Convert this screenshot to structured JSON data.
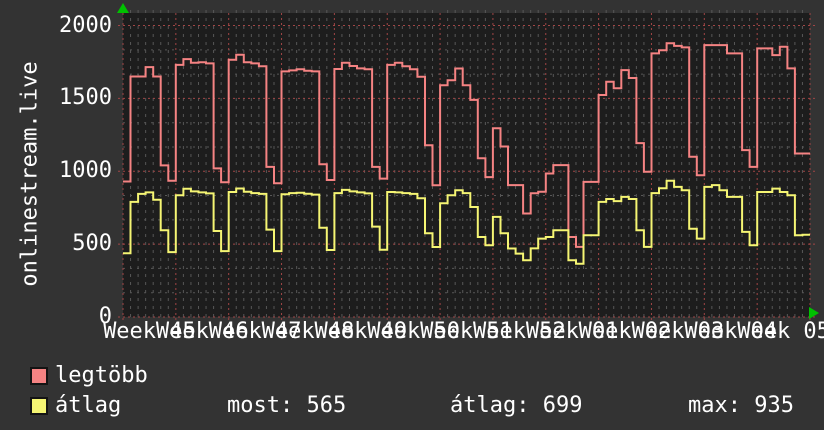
{
  "colors": {
    "background": "#333333",
    "plot_background": "#1d1d1d",
    "grid_major": "#a04545",
    "grid_minor": "#575757",
    "axis_arrow": "#00c200",
    "text": "#ffffff",
    "series_max": "#f58383",
    "series_avg": "#f5f573"
  },
  "legend": {
    "items": [
      {
        "label": "legtöbb",
        "color": "#f58383"
      },
      {
        "label": "átlag",
        "color": "#f5f573"
      }
    ],
    "stats": [
      {
        "text": "most: 565"
      },
      {
        "text": "átlag: 699"
      },
      {
        "text": "max: 935"
      }
    ]
  },
  "chart_data": {
    "type": "line",
    "step": true,
    "vertical_label": "onlinestream.live",
    "x_week_labels": [
      "Week 45",
      "Week 46",
      "Week 47",
      "Week 48",
      "Week 49",
      "Week 50",
      "Week 51",
      "Week 52",
      "Week 01",
      "Week 02",
      "Week 03",
      "Week 04",
      "Week 05"
    ],
    "days_per_week": 7,
    "y_ticks": [
      0,
      500,
      1000,
      1500,
      2000
    ],
    "ylim": [
      0,
      2086
    ],
    "grid": {
      "y_minor_step": 166.67,
      "x_minor": "daily",
      "x_major": "weekly"
    },
    "legend_position": "bottom",
    "series": [
      {
        "name": "legtöbb",
        "color": "#f58383",
        "values": [
          930,
          1650,
          1650,
          1715,
          1650,
          1040,
          935,
          1730,
          1770,
          1745,
          1748,
          1740,
          1020,
          925,
          1765,
          1800,
          1748,
          1740,
          1720,
          1030,
          918,
          1685,
          1692,
          1700,
          1690,
          1685,
          1048,
          940,
          1702,
          1745,
          1722,
          1706,
          1700,
          1030,
          950,
          1730,
          1745,
          1720,
          1700,
          1648,
          1179,
          904,
          1590,
          1625,
          1705,
          1590,
          1490,
          1090,
          960,
          1295,
          1170,
          905,
          905,
          710,
          849,
          860,
          985,
          1042,
          1042,
          549,
          481,
          927,
          927,
          1523,
          1614,
          1570,
          1694,
          1640,
          1193,
          996,
          1809,
          1830,
          1878,
          1860,
          1850,
          1099,
          973,
          1866,
          1866,
          1866,
          1809,
          1809,
          1145,
          1030,
          1843,
          1843,
          1797,
          1855,
          1706,
          1122,
          1122
        ]
      },
      {
        "name": "átlag",
        "color": "#f5f573",
        "values": [
          437,
          790,
          845,
          855,
          805,
          595,
          445,
          835,
          880,
          862,
          855,
          848,
          590,
          452,
          858,
          882,
          860,
          850,
          845,
          600,
          452,
          842,
          850,
          852,
          846,
          840,
          612,
          460,
          850,
          872,
          862,
          855,
          848,
          620,
          462,
          858,
          855,
          850,
          845,
          815,
          574,
          480,
          780,
          836,
          870,
          850,
          755,
          549,
          492,
          687,
          574,
          470,
          435,
          389,
          471,
          538,
          549,
          595,
          595,
          389,
          366,
          561,
          561,
          790,
          810,
          795,
          824,
          810,
          595,
          481,
          850,
          884,
          935,
          893,
          870,
          606,
          538,
          893,
          905,
          870,
          824,
          824,
          584,
          492,
          858,
          858,
          881,
          858,
          836,
          561,
          565
        ]
      }
    ],
    "stats": {
      "most": 565,
      "átlag": 699,
      "max": 935
    }
  }
}
